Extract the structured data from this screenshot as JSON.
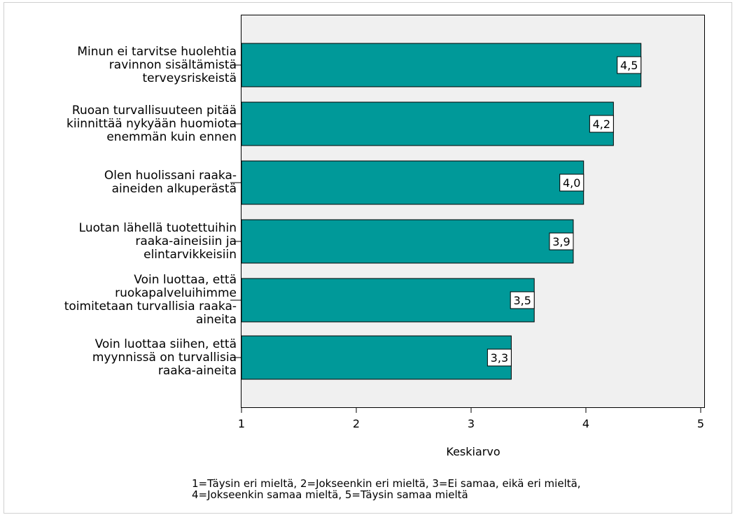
{
  "chart_data": {
    "type": "bar",
    "orientation": "horizontal",
    "categories": [
      [
        "Minun ei tarvitse huolehtia",
        "ravinnon sisältämistä",
        "terveysriskeistä"
      ],
      [
        "Ruoan turvallisuuteen pitää",
        "kiinnittää nykyään huomiota",
        "enemmän kuin ennen"
      ],
      [
        "Olen huolissani raaka-",
        "aineiden alkuperästä"
      ],
      [
        "Luotan lähellä tuotettuihin",
        "raaka-aineisiin ja",
        "elintarvikkeisiin"
      ],
      [
        "Voin luottaa, että",
        "ruokapalveluihimme",
        "toimitetaan turvallisia raaka-",
        "aineita"
      ],
      [
        "Voin luottaa siihen, että",
        "myynnissä on turvallisia",
        "raaka-aineita"
      ]
    ],
    "values": [
      4.48,
      4.24,
      3.98,
      3.89,
      3.55,
      3.35
    ],
    "data_labels": [
      "4,5",
      "4,2",
      "4,0",
      "3,9",
      "3,5",
      "3,3"
    ],
    "xlabel": "Keskiarvo",
    "xlim": [
      1,
      5.2
    ],
    "xticks": [
      "1",
      "2",
      "3",
      "4",
      "5"
    ],
    "bar_color": "#009999",
    "plot_background": "#f0f0f0",
    "grid": false
  },
  "footnote": {
    "line1": "1=Täysin eri mieltä, 2=Jokseenkin eri mieltä, 3=Ei samaa, eikä eri mieltä,",
    "line2": "4=Jokseenkin samaa mieltä, 5=Täysin samaa mieltä"
  }
}
